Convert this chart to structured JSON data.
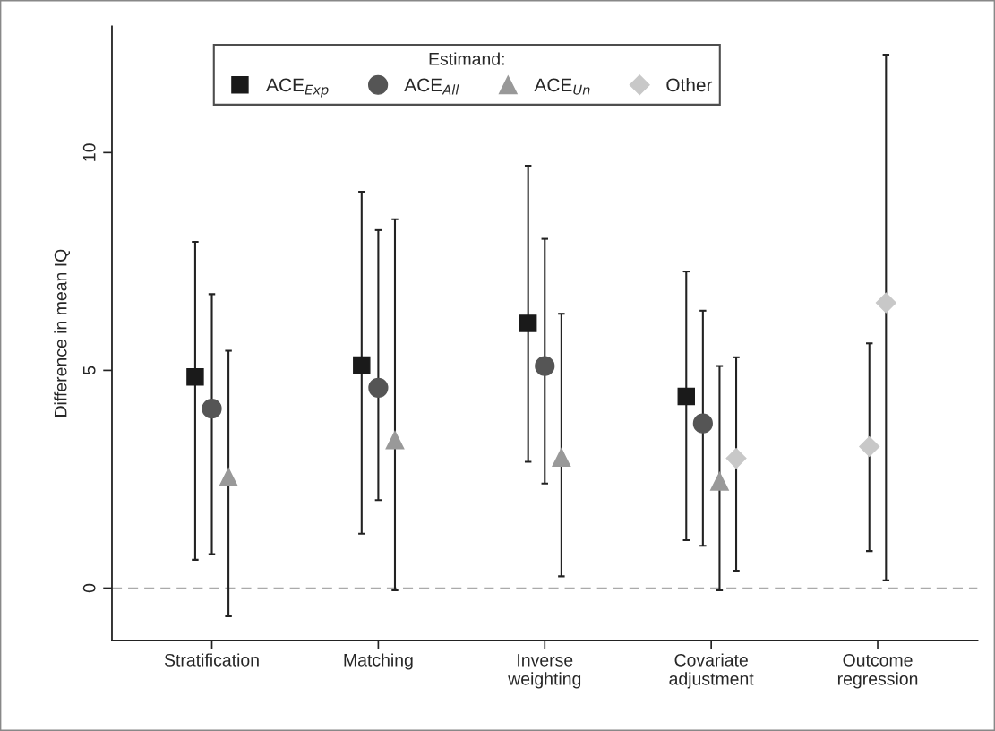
{
  "chart_data": {
    "type": "scatter",
    "ylabel": "Difference in mean IQ",
    "legend_title": "Estimand:",
    "legend": "top",
    "grid": false,
    "categories": [
      "Stratification",
      "Matching",
      "Inverse\nweighting",
      "Covariate\nadjustment",
      "Outcome\nregression"
    ],
    "ylim": [
      -1.2,
      12.9
    ],
    "yticks": [
      0,
      5,
      10
    ],
    "series": [
      {
        "name": "ACE$_{Exp}$",
        "color": "#1a1a1a",
        "marker": "square",
        "values": [
          4.85,
          5.12,
          6.08,
          4.4,
          null
        ],
        "errors": [
          [
            0.65,
            7.95
          ],
          [
            1.25,
            9.1
          ],
          [
            2.9,
            9.7
          ],
          [
            1.1,
            7.27
          ],
          null
        ]
      },
      {
        "name": "ACE$_{All}$",
        "color": "#555555",
        "marker": "circle",
        "values": [
          4.12,
          4.6,
          5.1,
          3.78,
          null
        ],
        "errors": [
          [
            0.78,
            6.75
          ],
          [
            2.02,
            8.22
          ],
          [
            2.4,
            8.02
          ],
          [
            0.97,
            6.37
          ],
          null
        ]
      },
      {
        "name": "ACE$_{Un}$",
        "color": "#999999",
        "marker": "triangle",
        "values": [
          2.55,
          3.4,
          3.0,
          2.45,
          null
        ],
        "errors": [
          [
            -0.65,
            5.45
          ],
          [
            -0.05,
            8.47
          ],
          [
            0.27,
            6.3
          ],
          [
            -0.05,
            5.1
          ],
          null
        ]
      },
      {
        "name": "Other",
        "color": "#c8c8c8",
        "marker": "diamond",
        "values": [
          null,
          null,
          null,
          2.98,
          3.25
        ],
        "errors": [
          null,
          null,
          null,
          [
            0.4,
            5.3
          ],
          [
            0.85,
            5.62
          ]
        ]
      },
      {
        "color": "#c8c8c8",
        "marker": "diamond",
        "values": [
          null,
          null,
          null,
          null,
          6.55
        ],
        "errors": [
          null,
          null,
          null,
          null,
          [
            0.18,
            12.25
          ]
        ]
      }
    ],
    "ref_lines": [
      {
        "axis": "y",
        "value": 0,
        "color": "#aaaaaa",
        "line_style": "dashed"
      }
    ]
  }
}
